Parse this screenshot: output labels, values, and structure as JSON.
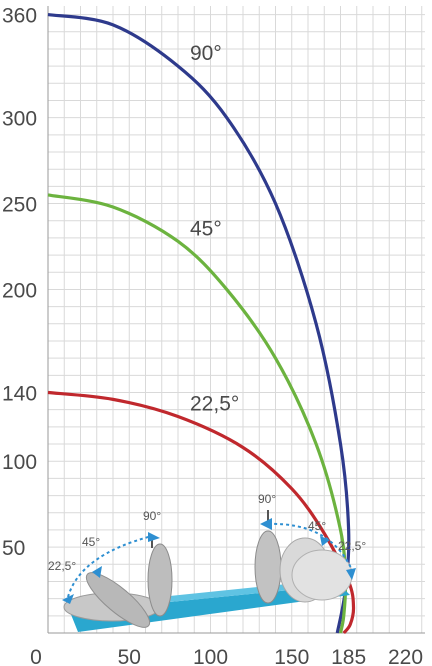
{
  "chart_data": {
    "type": "line",
    "title": "",
    "xlabel": "",
    "ylabel": "",
    "xlim": [
      0,
      232
    ],
    "ylim": [
      0,
      365
    ],
    "x_ticks": [
      "0",
      "50",
      "100",
      "150",
      "185",
      "220"
    ],
    "y_ticks": [
      "50",
      "100",
      "140",
      "200",
      "250",
      "300",
      "360"
    ],
    "grid": true,
    "series": [
      {
        "name": "90°",
        "color": "#2e3a8c",
        "points": [
          [
            0,
            360
          ],
          [
            40,
            354
          ],
          [
            80,
            330
          ],
          [
            110,
            300
          ],
          [
            140,
            250
          ],
          [
            165,
            180
          ],
          [
            180,
            110
          ],
          [
            185,
            60
          ],
          [
            183,
            25
          ],
          [
            178,
            0
          ]
        ]
      },
      {
        "name": "45°",
        "color": "#6cb33f",
        "points": [
          [
            0,
            255
          ],
          [
            40,
            248
          ],
          [
            80,
            228
          ],
          [
            110,
            200
          ],
          [
            140,
            160
          ],
          [
            165,
            110
          ],
          [
            180,
            60
          ],
          [
            183,
            30
          ],
          [
            182,
            10
          ],
          [
            180,
            0
          ]
        ]
      },
      {
        "name": "22,5°",
        "color": "#c0282d",
        "points": [
          [
            0,
            140
          ],
          [
            40,
            136
          ],
          [
            80,
            126
          ],
          [
            120,
            108
          ],
          [
            150,
            84
          ],
          [
            170,
            58
          ],
          [
            185,
            30
          ],
          [
            188,
            15
          ],
          [
            186,
            5
          ],
          [
            182,
            0
          ]
        ]
      }
    ]
  },
  "illustration": {
    "left_labels": [
      "90°",
      "45°",
      "22,5°"
    ],
    "right_labels": [
      "90°",
      "45°",
      "22,5°"
    ]
  }
}
